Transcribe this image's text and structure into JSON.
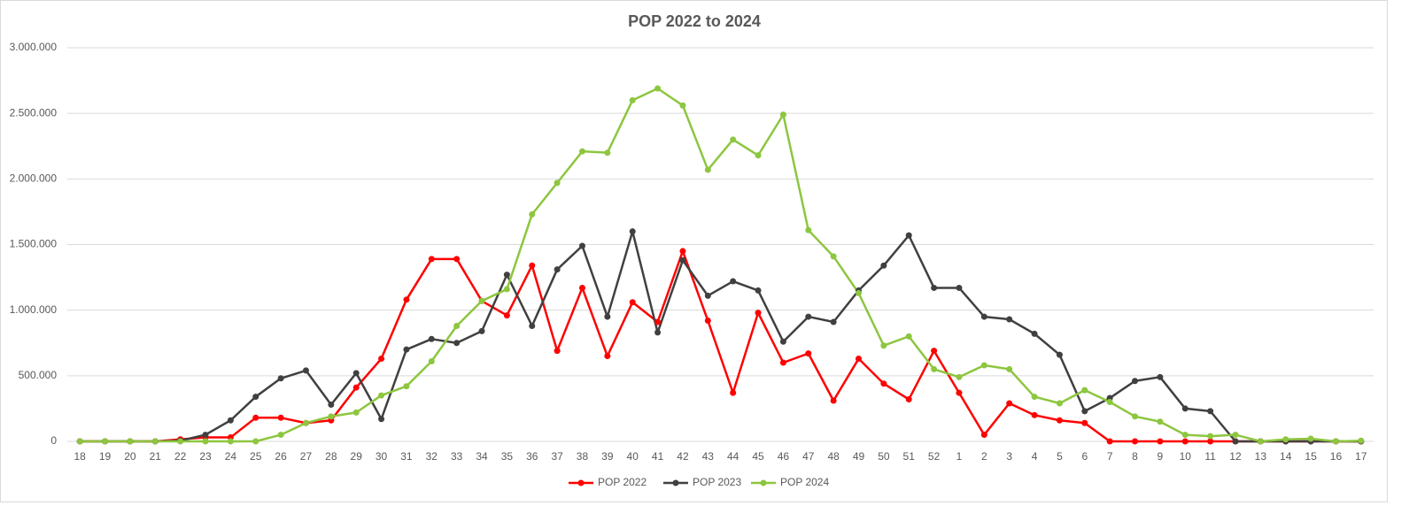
{
  "chart_data": {
    "type": "line",
    "title": "POP 2022 to 2024",
    "categories": [
      "18",
      "19",
      "20",
      "21",
      "22",
      "23",
      "24",
      "25",
      "26",
      "27",
      "28",
      "29",
      "30",
      "31",
      "32",
      "33",
      "34",
      "35",
      "36",
      "37",
      "38",
      "39",
      "40",
      "41",
      "42",
      "43",
      "44",
      "45",
      "46",
      "47",
      "48",
      "49",
      "50",
      "51",
      "52",
      "1",
      "2",
      "3",
      "4",
      "5",
      "6",
      "7",
      "8",
      "9",
      "10",
      "11",
      "12",
      "13",
      "14",
      "15",
      "16",
      "17"
    ],
    "series": [
      {
        "name": "POP 2022",
        "color": "#ff0000",
        "values": [
          0,
          0,
          0,
          0,
          15000,
          30000,
          30000,
          180000,
          180000,
          140000,
          160000,
          410000,
          630000,
          1080000,
          1390000,
          1390000,
          1070000,
          960000,
          1340000,
          690000,
          1170000,
          650000,
          1060000,
          910000,
          1450000,
          920000,
          370000,
          980000,
          600000,
          670000,
          310000,
          630000,
          440000,
          320000,
          690000,
          370000,
          50000,
          290000,
          200000,
          160000,
          140000,
          0,
          0,
          0,
          0,
          0,
          0,
          0,
          0,
          0,
          0,
          0
        ]
      },
      {
        "name": "POP 2023",
        "color": "#404040",
        "values": [
          0,
          0,
          0,
          0,
          5000,
          50000,
          160000,
          340000,
          480000,
          540000,
          280000,
          520000,
          170000,
          700000,
          780000,
          750000,
          840000,
          1270000,
          880000,
          1310000,
          1490000,
          950000,
          1600000,
          830000,
          1380000,
          1110000,
          1220000,
          1150000,
          760000,
          950000,
          910000,
          1150000,
          1340000,
          1570000,
          1170000,
          1170000,
          950000,
          930000,
          820000,
          660000,
          230000,
          330000,
          460000,
          490000,
          250000,
          230000,
          0,
          0,
          0,
          0,
          0,
          0
        ]
      },
      {
        "name": "POP 2024",
        "color": "#8dc63f",
        "values": [
          0,
          0,
          0,
          0,
          0,
          0,
          0,
          0,
          50000,
          140000,
          190000,
          220000,
          350000,
          420000,
          610000,
          880000,
          1070000,
          1160000,
          1730000,
          1970000,
          2210000,
          2200000,
          2600000,
          2690000,
          2560000,
          2070000,
          2300000,
          2180000,
          2490000,
          1610000,
          1410000,
          1130000,
          730000,
          800000,
          550000,
          490000,
          580000,
          550000,
          340000,
          290000,
          390000,
          300000,
          190000,
          150000,
          50000,
          40000,
          50000,
          0,
          15000,
          20000,
          0,
          5000
        ]
      }
    ],
    "ylim": [
      0,
      3000000
    ],
    "yticks": [
      0,
      {
        "value": 500000,
        "label": "500.000"
      },
      {
        "value": 1000000,
        "label": "1.000.000"
      },
      {
        "value": 1500000,
        "label": "1.500.000"
      },
      {
        "value": 2000000,
        "label": "2.000.000"
      },
      {
        "value": 2500000,
        "label": "2.500.000"
      },
      {
        "value": 3000000,
        "label": "3.000.000"
      }
    ],
    "grid": true,
    "legend": "bottom"
  }
}
